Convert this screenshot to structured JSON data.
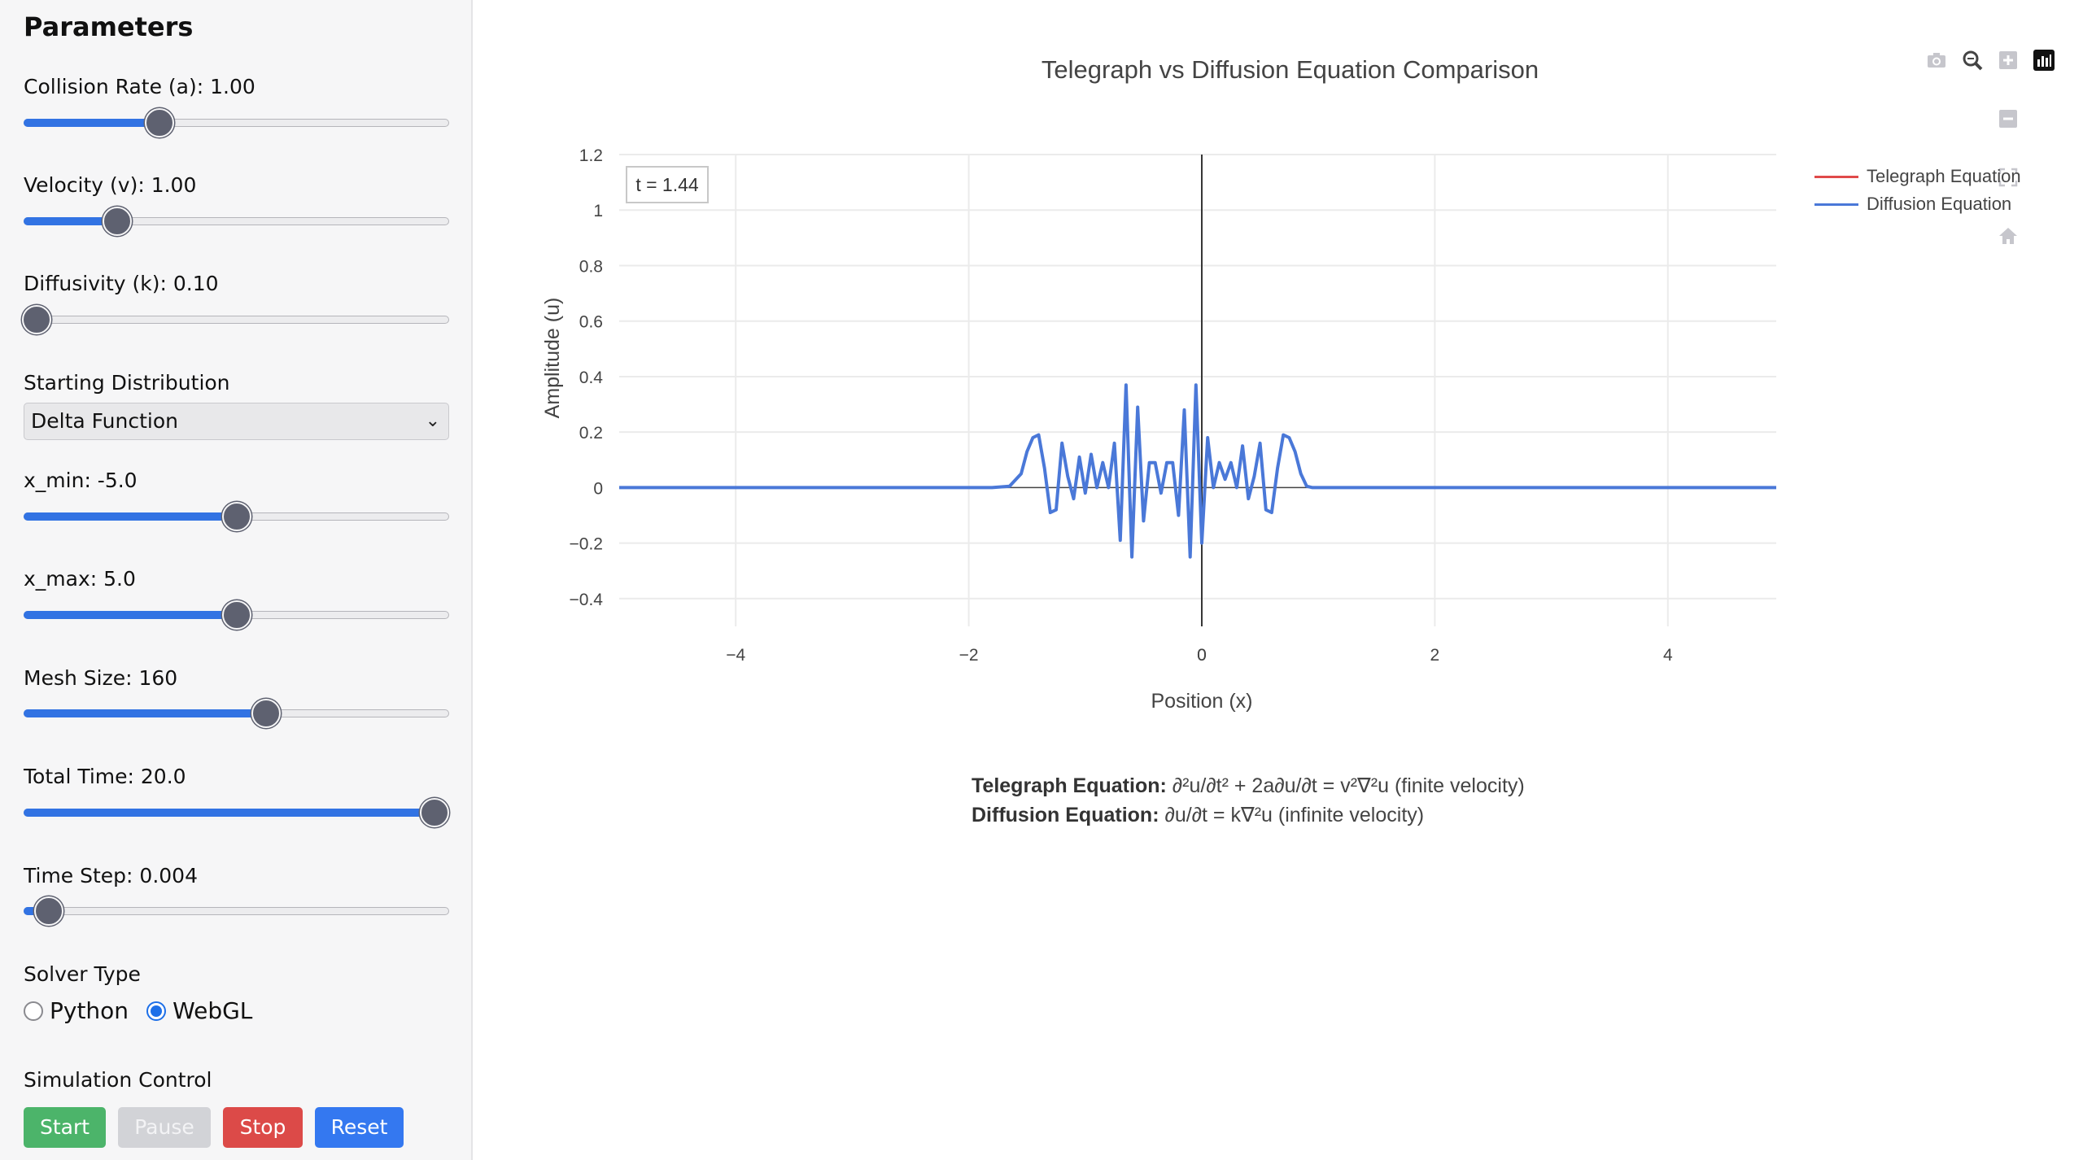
{
  "sidebar": {
    "title": "Parameters",
    "sliders": [
      {
        "label": "Collision Rate (a): 1.00",
        "fraction": 0.32
      },
      {
        "label": "Velocity (v): 1.00",
        "fraction": 0.22
      },
      {
        "label": "Diffusivity (k): 0.10",
        "fraction": 0.03
      },
      {
        "label": "x_min: -5.0",
        "fraction": 0.5
      },
      {
        "label": "x_max: 5.0",
        "fraction": 0.5
      },
      {
        "label": "Mesh Size: 160",
        "fraction": 0.57
      },
      {
        "label": "Total Time: 20.0",
        "fraction": 0.965
      },
      {
        "label": "Time Step: 0.004",
        "fraction": 0.06
      }
    ],
    "distribution": {
      "label": "Starting Distribution",
      "selected": "Delta Function"
    },
    "solver": {
      "label": "Solver Type",
      "options": [
        "Python",
        "WebGL"
      ],
      "selected": "WebGL"
    },
    "control": {
      "label": "Simulation Control",
      "start": "Start",
      "pause": "Pause",
      "stop": "Stop",
      "reset": "Reset"
    }
  },
  "chart": {
    "title": "Telegraph vs Diffusion Equation Comparison",
    "time_label": "t = 1.44"
  },
  "legend": [
    {
      "name": "Telegraph Equation",
      "color": "#e04a4a"
    },
    {
      "name": "Diffusion Equation",
      "color": "#4a78d8"
    }
  ],
  "equations": {
    "telegraph_label": "Telegraph Equation:",
    "telegraph_text": " ∂²u/∂t² + 2a∂u/∂t = v²∇²u (finite velocity)",
    "diffusion_label": "Diffusion Equation:",
    "diffusion_text": " ∂u/∂t = k∇²u (infinite velocity)"
  },
  "modebar": [
    "camera-icon",
    "zoom-icon",
    "zoom-in-icon",
    "plotly-logo-icon",
    "zoom-out-icon",
    "autoscale-icon",
    "reset-axes-home-icon"
  ],
  "chart_data": {
    "type": "line",
    "title": "Telegraph vs Diffusion Equation Comparison",
    "xlabel": "Position (x)",
    "ylabel": "Amplitude (u)",
    "xlim": [
      -5,
      5
    ],
    "ylim": [
      -0.5,
      1.2
    ],
    "xticks": [
      -4,
      -2,
      0,
      2,
      4
    ],
    "yticks": [
      -0.4,
      -0.2,
      0,
      0.2,
      0.4,
      0.6,
      0.8,
      1,
      1.2
    ],
    "grid": true,
    "legend_position": "top-right",
    "series": [
      {
        "name": "Telegraph Equation",
        "color": "#e04a4a",
        "x": [],
        "y": []
      },
      {
        "name": "Diffusion Equation",
        "color": "#4a78d8",
        "x": [
          -5,
          -1.8,
          -1.65,
          -1.55,
          -1.5,
          -1.45,
          -1.4,
          -1.35,
          -1.3,
          -1.25,
          -1.2,
          -1.15,
          -1.1,
          -1.05,
          -1.0,
          -0.95,
          -0.9,
          -0.85,
          -0.8,
          -0.75,
          -0.7,
          -0.65,
          -0.6,
          -0.55,
          -0.5,
          -0.45,
          -0.4,
          -0.35,
          -0.3,
          -0.25,
          -0.2,
          -0.15,
          -0.1,
          -0.05,
          0,
          0.05,
          0.1,
          0.15,
          0.2,
          0.25,
          0.3,
          0.35,
          0.4,
          0.45,
          0.5,
          0.55,
          0.6,
          0.65,
          0.7,
          0.75,
          0.8,
          0.85,
          0.9,
          0.95,
          1.0,
          1.05,
          1.1,
          1.15,
          1.2,
          1.25,
          1.3,
          1.35,
          1.4,
          1.45,
          1.5,
          1.55,
          1.65,
          1.8,
          5
        ],
        "y": [
          0,
          0,
          0.005,
          0.05,
          0.13,
          0.18,
          0.19,
          0.07,
          -0.09,
          -0.08,
          0.16,
          0.04,
          -0.04,
          0.11,
          -0.02,
          0.12,
          0.0,
          0.09,
          0.0,
          0.16,
          -0.19,
          0.37,
          -0.25,
          0.29,
          -0.12,
          0.09,
          0.09,
          -0.02,
          0.09,
          0.09,
          -0.1,
          0.28,
          -0.25,
          0.37,
          -0.2,
          0.18,
          0.0,
          0.09,
          0.03,
          0.09,
          0.0,
          0.15,
          -0.04,
          0.04,
          0.16,
          -0.08,
          -0.09,
          0.07,
          0.19,
          0.18,
          0.13,
          0.05,
          0.005,
          0,
          0,
          0,
          0,
          0,
          0,
          0,
          0,
          0,
          0,
          0,
          0,
          0,
          0,
          0,
          0
        ]
      }
    ]
  }
}
